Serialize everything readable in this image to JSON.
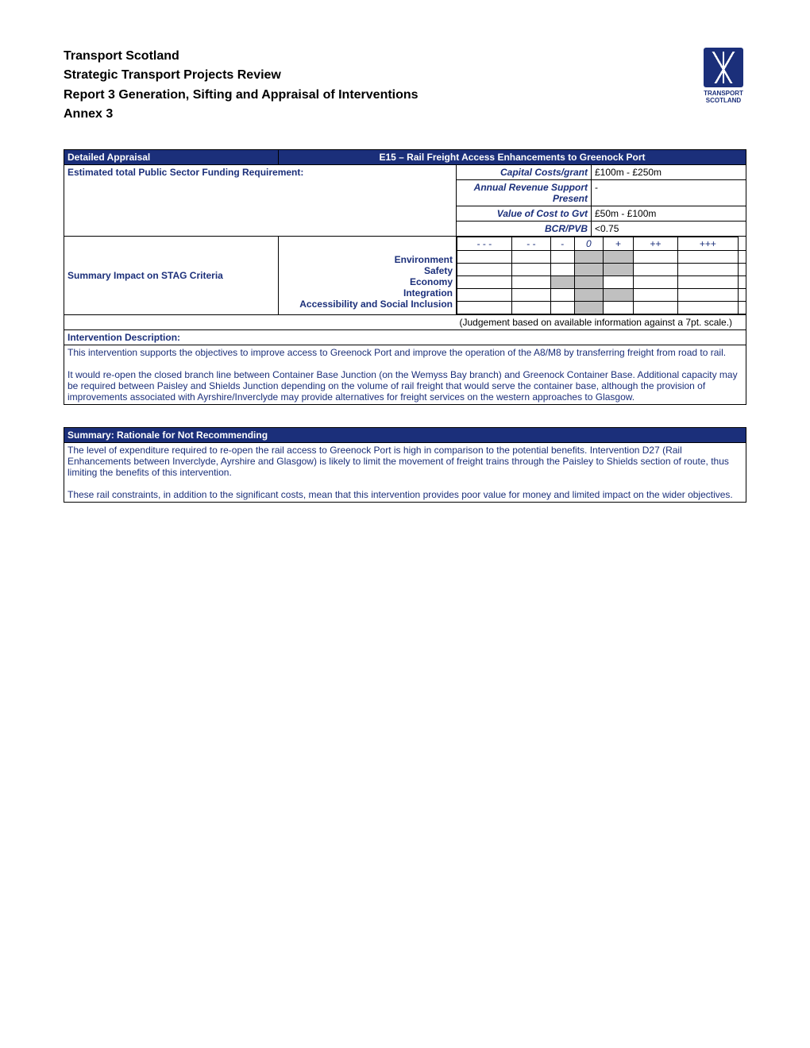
{
  "header": {
    "line1": "Transport Scotland",
    "line2": "Strategic Transport Projects Review",
    "line3": "Report 3 Generation, Sifting and Appraisal of Interventions",
    "line4": "Annex 3",
    "logo_text_1": "TRANSPORT",
    "logo_text_2": "SCOTLAND"
  },
  "colors": {
    "brand": "#1b2f7a",
    "grey": "#c0c0c0",
    "white": "#ffffff",
    "black": "#000000"
  },
  "appraisal": {
    "title_left": "Detailed Appraisal",
    "title_right": "E15 – Rail Freight Access Enhancements to Greenock Port",
    "funding_label": "Estimated total Public Sector Funding Requirement:",
    "rows": [
      {
        "label": "Capital Costs/grant",
        "value": "£100m - £250m"
      },
      {
        "label": "Annual Revenue Support Present",
        "value": "-"
      },
      {
        "label": "Value of Cost to Gvt",
        "value": "£50m - £100m"
      },
      {
        "label": "BCR/PVB",
        "value": "<0.75"
      }
    ]
  },
  "impact": {
    "left_label": "Summary Impact on STAG Criteria",
    "criteria": [
      "Environment",
      "Safety",
      "Economy",
      "Integration",
      "Accessibility and Social Inclusion"
    ],
    "scale": [
      "- - -",
      "- -",
      "-",
      "0",
      "+",
      "++",
      "+++"
    ],
    "zero_col": 3,
    "note": "(Judgement based on available information against a 7pt. scale.)",
    "fills": {
      "Environment": [
        3,
        4
      ],
      "Safety": [
        3,
        4
      ],
      "Economy": [
        2,
        3
      ],
      "Integration": [
        3,
        4
      ],
      "Accessibility and Social Inclusion": [
        3
      ]
    }
  },
  "description": {
    "heading": "Intervention Description:",
    "p1": "This intervention supports the objectives to improve access to Greenock Port and improve the operation of the A8/M8 by transferring freight from road to rail.",
    "p2": "It would re-open the closed branch line between Container Base Junction (on the Wemyss Bay branch) and Greenock Container Base.  Additional capacity may be required between Paisley and Shields Junction depending on the volume of rail freight that would serve the container base, although the provision of improvements associated with Ayrshire/Inverclyde may provide alternatives for freight services on the western approaches to Glasgow."
  },
  "summary": {
    "heading": "Summary: Rationale for Not Recommending",
    "p1": "The level of expenditure required to re-open the rail access to Greenock Port is high in comparison to the potential benefits.  Intervention D27 (Rail Enhancements between Inverclyde, Ayrshire and Glasgow) is likely to limit the movement of freight trains through the Paisley to Shields section of route, thus limiting the benefits of this intervention.",
    "p2": "These rail constraints, in addition to the significant costs, mean that this intervention provides poor value for money and limited impact on the wider objectives."
  }
}
